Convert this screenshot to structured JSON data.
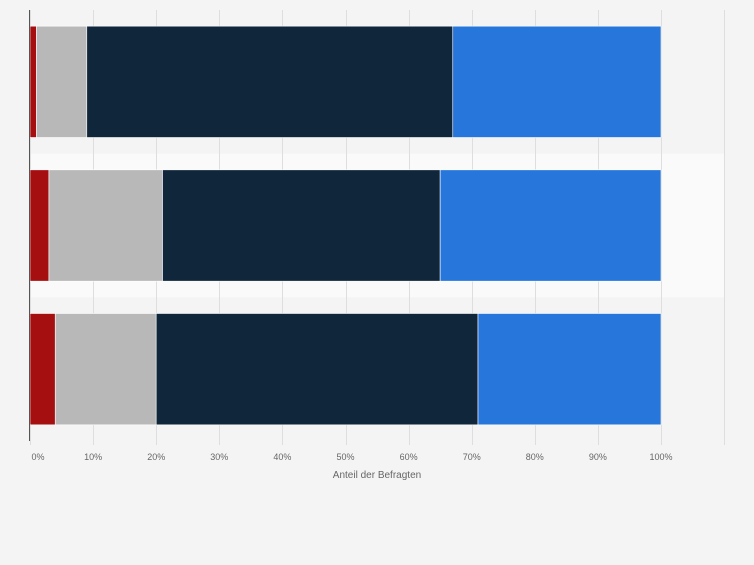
{
  "chart_data": {
    "type": "bar",
    "orientation": "horizontal",
    "stacked": true,
    "title": "",
    "xlabel": "Anteil der Befragten",
    "ylabel": "",
    "xlim": [
      0,
      100
    ],
    "x_ticks": [
      "0%",
      "10%",
      "20%",
      "30%",
      "40%",
      "50%",
      "60%",
      "70%",
      "80%",
      "90%",
      "100%"
    ],
    "grid": true,
    "legend": "none",
    "categories": [
      "",
      "",
      ""
    ],
    "series": [
      {
        "color": "#a50f0f",
        "values": [
          1,
          3,
          4
        ]
      },
      {
        "color": "#b8b8b8",
        "values": [
          8,
          18,
          16
        ]
      },
      {
        "color": "#10263b",
        "values": [
          58,
          44,
          51
        ]
      },
      {
        "color": "#2776dc",
        "values": [
          33,
          35,
          29
        ]
      }
    ]
  }
}
